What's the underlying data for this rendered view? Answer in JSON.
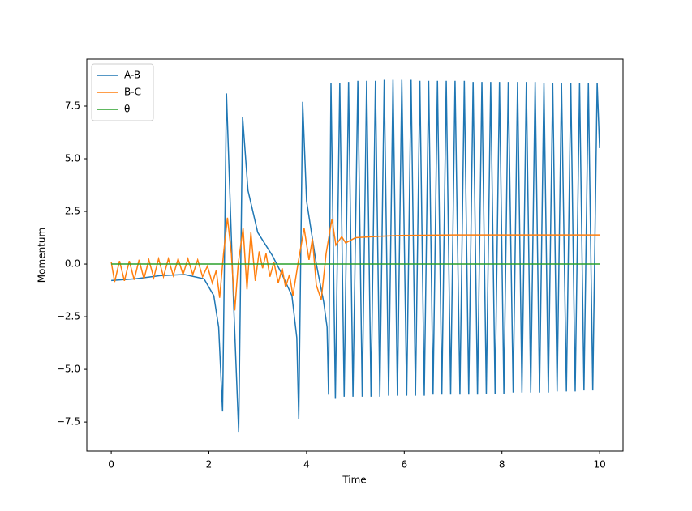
{
  "chart_data": {
    "type": "line",
    "xlabel": "Time",
    "ylabel": "Momentum",
    "legend": "upper left",
    "xlim": [
      -0.5,
      10.48
    ],
    "ylim": [
      -8.88,
      9.73
    ],
    "xticks": [
      0,
      2,
      4,
      6,
      8,
      10
    ],
    "yticks": [
      {
        "value": -7.5,
        "label": "−7.5"
      },
      {
        "value": -5,
        "label": "−5.0"
      },
      {
        "value": -2.5,
        "label": "−2.5"
      },
      {
        "value": 0,
        "label": "0.0"
      },
      {
        "value": 2.5,
        "label": "2.5"
      },
      {
        "value": 5,
        "label": "5.0"
      },
      {
        "value": 7.5,
        "label": "7.5"
      }
    ],
    "series": [
      {
        "name": "A-B",
        "color": "#1f77b4",
        "x": [
          0,
          0.5,
          1.0,
          1.5,
          1.9,
          2.1,
          2.2,
          2.28,
          2.36,
          2.5,
          2.61,
          2.69,
          2.8,
          3.0,
          3.3,
          3.5,
          3.7,
          3.8,
          3.84,
          3.92,
          4.0,
          4.2,
          4.35,
          4.42,
          4.45,
          4.5,
          4.59,
          4.68,
          4.77,
          4.86,
          4.95,
          5.05,
          5.14,
          5.23,
          5.32,
          5.41,
          5.5,
          5.59,
          5.68,
          5.77,
          5.86,
          5.95,
          6.05,
          6.14,
          6.23,
          6.32,
          6.41,
          6.5,
          6.59,
          6.68,
          6.77,
          6.86,
          6.95,
          7.04,
          7.14,
          7.23,
          7.32,
          7.41,
          7.5,
          7.59,
          7.68,
          7.77,
          7.86,
          7.95,
          8.04,
          8.13,
          8.23,
          8.32,
          8.41,
          8.5,
          8.59,
          8.68,
          8.77,
          8.86,
          8.95,
          9.04,
          9.13,
          9.22,
          9.32,
          9.41,
          9.5,
          9.59,
          9.68,
          9.77,
          9.86,
          9.95,
          10.0
        ],
        "values": [
          -0.78,
          -0.7,
          -0.55,
          -0.5,
          -0.7,
          -1.5,
          -3.0,
          -7.0,
          8.1,
          -1.5,
          -8.0,
          7.0,
          3.5,
          1.5,
          0.4,
          -0.5,
          -1.5,
          -3.5,
          -7.35,
          7.7,
          3.0,
          0,
          -1.8,
          -3.0,
          -6.2,
          8.6,
          -6.4,
          8.6,
          -6.3,
          8.65,
          -6.3,
          8.7,
          -6.3,
          8.7,
          -6.3,
          8.7,
          -6.3,
          8.75,
          -6.25,
          8.75,
          -6.25,
          8.75,
          -6.25,
          8.75,
          -6.25,
          8.7,
          -6.25,
          8.7,
          -6.2,
          8.7,
          -6.2,
          8.7,
          -6.2,
          8.7,
          -6.2,
          8.7,
          -6.2,
          8.65,
          -6.2,
          8.65,
          -6.15,
          8.65,
          -6.15,
          8.65,
          -6.15,
          8.65,
          -6.1,
          8.65,
          -6.1,
          8.65,
          -6.1,
          8.65,
          -6.1,
          8.6,
          -6.1,
          8.6,
          -6.05,
          8.6,
          -6.05,
          8.6,
          -6.05,
          8.6,
          -6.0,
          8.6,
          -6.0,
          8.6,
          5.5
        ]
      },
      {
        "name": "B-C",
        "color": "#ff7f0e",
        "x": [
          0,
          0.07,
          0.17,
          0.27,
          0.37,
          0.47,
          0.57,
          0.67,
          0.77,
          0.87,
          0.97,
          1.07,
          1.17,
          1.27,
          1.37,
          1.47,
          1.57,
          1.67,
          1.77,
          1.87,
          1.97,
          2.07,
          2.15,
          2.22,
          2.3,
          2.38,
          2.46,
          2.53,
          2.6,
          2.7,
          2.78,
          2.86,
          2.95,
          3.03,
          3.1,
          3.17,
          3.25,
          3.33,
          3.42,
          3.5,
          3.57,
          3.65,
          3.72,
          3.83,
          3.95,
          4.05,
          4.12,
          4.2,
          4.3,
          4.4,
          4.52,
          4.6,
          4.72,
          4.8,
          5.0,
          5.5,
          6.0,
          7.0,
          8.0,
          10.0
        ],
        "values": [
          0.1,
          -0.85,
          0.15,
          -0.8,
          0.15,
          -0.75,
          0.2,
          -0.7,
          0.2,
          -0.65,
          0.25,
          -0.6,
          0.25,
          -0.55,
          0.25,
          -0.5,
          0.25,
          -0.5,
          0.2,
          -0.6,
          -0.1,
          -0.9,
          -0.3,
          -1.6,
          0.5,
          2.2,
          0.5,
          -2.2,
          0,
          1.7,
          -1.2,
          1.5,
          -0.8,
          0.6,
          -0.2,
          0.5,
          -0.6,
          0.1,
          -0.9,
          -0.2,
          -1.1,
          -0.5,
          -1.5,
          0.1,
          1.7,
          0.2,
          1.2,
          -1.0,
          -1.7,
          0.5,
          2.15,
          0.9,
          1.3,
          1.0,
          1.25,
          1.32,
          1.36,
          1.38,
          1.38,
          1.38
        ]
      },
      {
        "name": "θ",
        "color": "#2ca02c",
        "x": [
          0,
          10
        ],
        "values": [
          0,
          0
        ]
      }
    ]
  }
}
